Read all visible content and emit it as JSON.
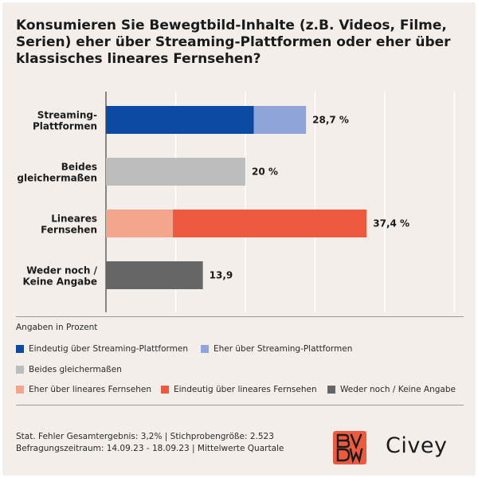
{
  "title": "Konsumieren Sie Bewegtbild-Inhalte (z.B. Videos, Filme, Serien) eher über Streaming-Plattformen oder eher über klassisches lineares Fernsehen?",
  "note": "Angaben in Prozent",
  "chart_data": {
    "type": "bar",
    "orientation": "horizontal",
    "stacked": true,
    "categories": [
      [
        "Streaming-",
        "Plattformen"
      ],
      [
        "Beides",
        "gleichermaßen"
      ],
      [
        "Lineares",
        "Fernsehen"
      ],
      [
        "Weder noch /",
        "Keine Angabe"
      ]
    ],
    "xlim": [
      0,
      50
    ],
    "grid": true,
    "rows": [
      {
        "segments": [
          {
            "series": "Eindeutig über Streaming-Plattformen",
            "value": 21.2
          },
          {
            "series": "Eher über Streaming-Plattformen",
            "value": 7.5
          }
        ],
        "total_label": "28,7 %"
      },
      {
        "segments": [
          {
            "series": "Beides gleichermaßen",
            "value": 20
          }
        ],
        "total_label": "20 %"
      },
      {
        "segments": [
          {
            "series": "Eher über lineares Fernsehen",
            "value": 9.6
          },
          {
            "series": "Eindeutig über lineares Fernsehen",
            "value": 27.8
          }
        ],
        "total_label": "37,4 %"
      },
      {
        "segments": [
          {
            "series": "Weder noch / Keine Angabe",
            "value": 13.9
          }
        ],
        "total_label": "13,9"
      }
    ],
    "legend": [
      {
        "name": "Eindeutig über Streaming-Plattformen",
        "color": "#0b4aa2"
      },
      {
        "name": "Eher über Streaming-Plattformen",
        "color": "#8fa4d9"
      },
      {
        "name": "Beides gleichermaßen",
        "color": "#bdbdbd"
      },
      {
        "name": "Eher über lineares Fernsehen",
        "color": "#f4a68d"
      },
      {
        "name": "Eindeutig über lineares Fernsehen",
        "color": "#ee5a3d"
      },
      {
        "name": "Weder noch / Keine Angabe",
        "color": "#666666"
      }
    ]
  },
  "footer": {
    "line1": "Stat. Fehler Gesamtergebnis: 3,2% | Stichprobengröße: 2.523",
    "line2": "Befragungszeitraum: 14.09.23 - 18.09.23 | Mittelwerte Quartale"
  },
  "logos": {
    "bvdw": "BVDW",
    "civey": "Civey"
  }
}
